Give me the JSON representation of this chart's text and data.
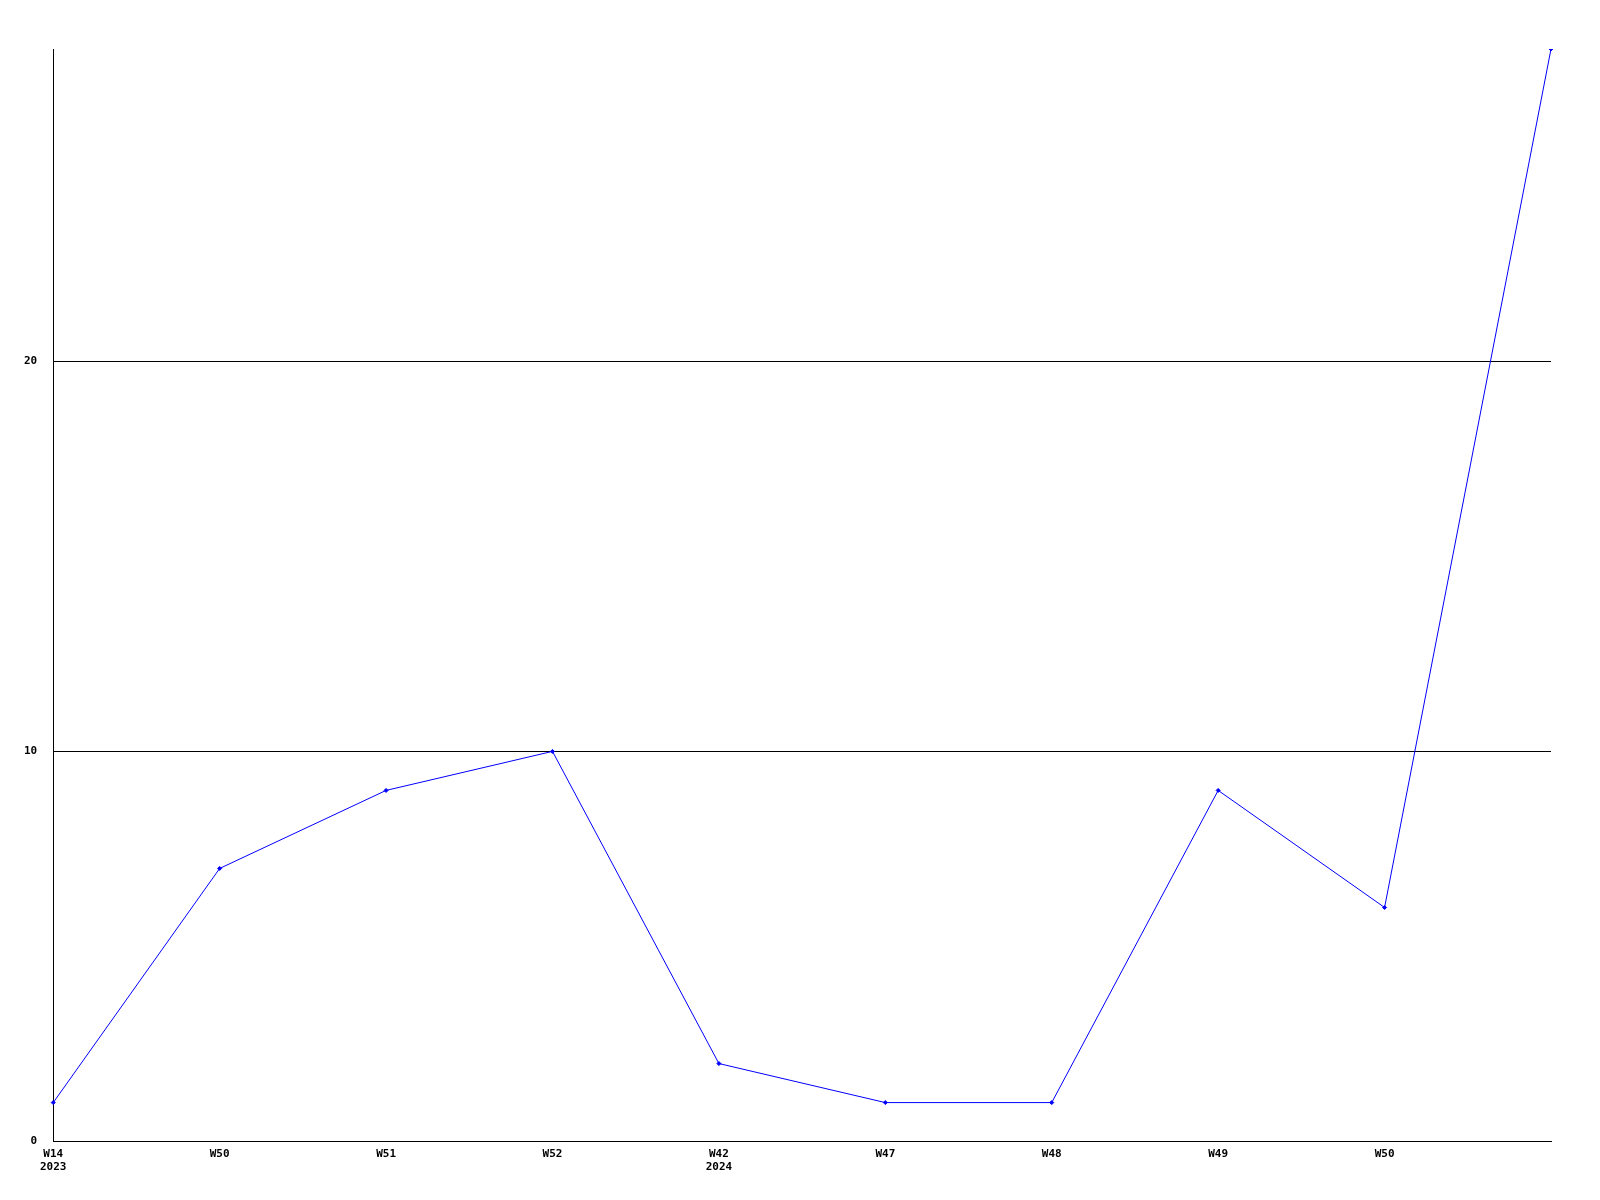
{
  "chart_data": {
    "type": "line",
    "categories": [
      "W14\n2023",
      "W50",
      "W51",
      "W52",
      "W42\n2024",
      "W47",
      "W48",
      "W49",
      "W50",
      null
    ],
    "series": [
      {
        "color": "#0000ff",
        "values": [
          1,
          7,
          9,
          10,
          2,
          1,
          1,
          9,
          6,
          28
        ]
      }
    ],
    "ylim": [
      0,
      28
    ],
    "yticks": [
      0,
      10,
      20
    ],
    "grid": "y",
    "legend": false,
    "marker": "diamond",
    "line_style": "solid"
  }
}
